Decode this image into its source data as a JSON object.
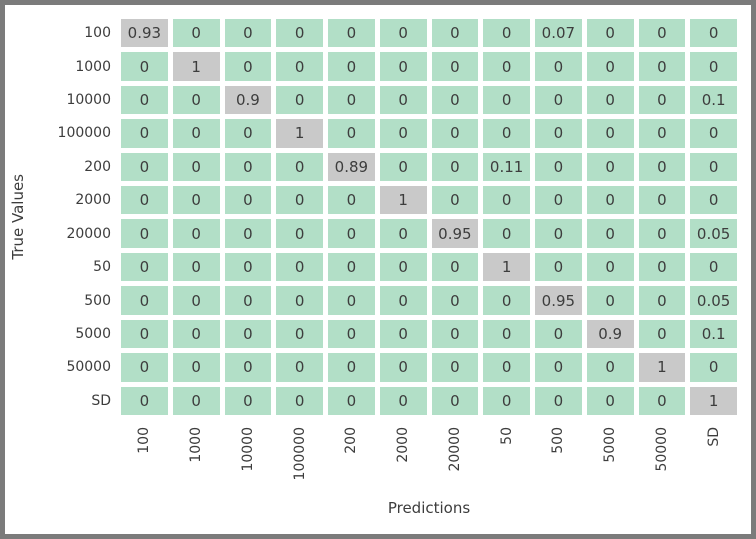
{
  "chart_data": {
    "type": "heatmap",
    "title": "",
    "xlabel": "Predictions",
    "ylabel": "True Values",
    "x_categories": [
      "100",
      "1000",
      "10000",
      "100000",
      "200",
      "2000",
      "20000",
      "50",
      "500",
      "5000",
      "50000",
      "SD"
    ],
    "y_categories": [
      "100",
      "1000",
      "10000",
      "100000",
      "200",
      "2000",
      "20000",
      "50",
      "500",
      "5000",
      "50000",
      "SD"
    ],
    "matrix": [
      [
        0.93,
        0,
        0,
        0,
        0,
        0,
        0,
        0,
        0.07,
        0,
        0,
        0
      ],
      [
        0,
        1,
        0,
        0,
        0,
        0,
        0,
        0,
        0,
        0,
        0,
        0
      ],
      [
        0,
        0,
        0.9,
        0,
        0,
        0,
        0,
        0,
        0,
        0,
        0,
        0.1
      ],
      [
        0,
        0,
        0,
        1,
        0,
        0,
        0,
        0,
        0,
        0,
        0,
        0
      ],
      [
        0,
        0,
        0,
        0,
        0.89,
        0,
        0,
        0.11,
        0,
        0,
        0,
        0
      ],
      [
        0,
        0,
        0,
        0,
        0,
        1,
        0,
        0,
        0,
        0,
        0,
        0
      ],
      [
        0,
        0,
        0,
        0,
        0,
        0,
        0.95,
        0,
        0,
        0,
        0,
        0.05
      ],
      [
        0,
        0,
        0,
        0,
        0,
        0,
        0,
        1,
        0,
        0,
        0,
        0
      ],
      [
        0,
        0,
        0,
        0,
        0,
        0,
        0,
        0,
        0.95,
        0,
        0,
        0.05
      ],
      [
        0,
        0,
        0,
        0,
        0,
        0,
        0,
        0,
        0,
        0.9,
        0,
        0.1
      ],
      [
        0,
        0,
        0,
        0,
        0,
        0,
        0,
        0,
        0,
        0,
        1,
        0
      ],
      [
        0,
        0,
        0,
        0,
        0,
        0,
        0,
        0,
        0,
        0,
        0,
        1
      ]
    ],
    "legend_position": "none",
    "grid": false,
    "palette": {
      "low_cell": "#b2dfc7",
      "high_cell": "#c9c9c9",
      "high_threshold": 0.5,
      "cell_text": "#3d3d3d",
      "tick_text": "#3d3d3d",
      "frame": "#7b7b7b",
      "background": "#ffffff"
    }
  }
}
